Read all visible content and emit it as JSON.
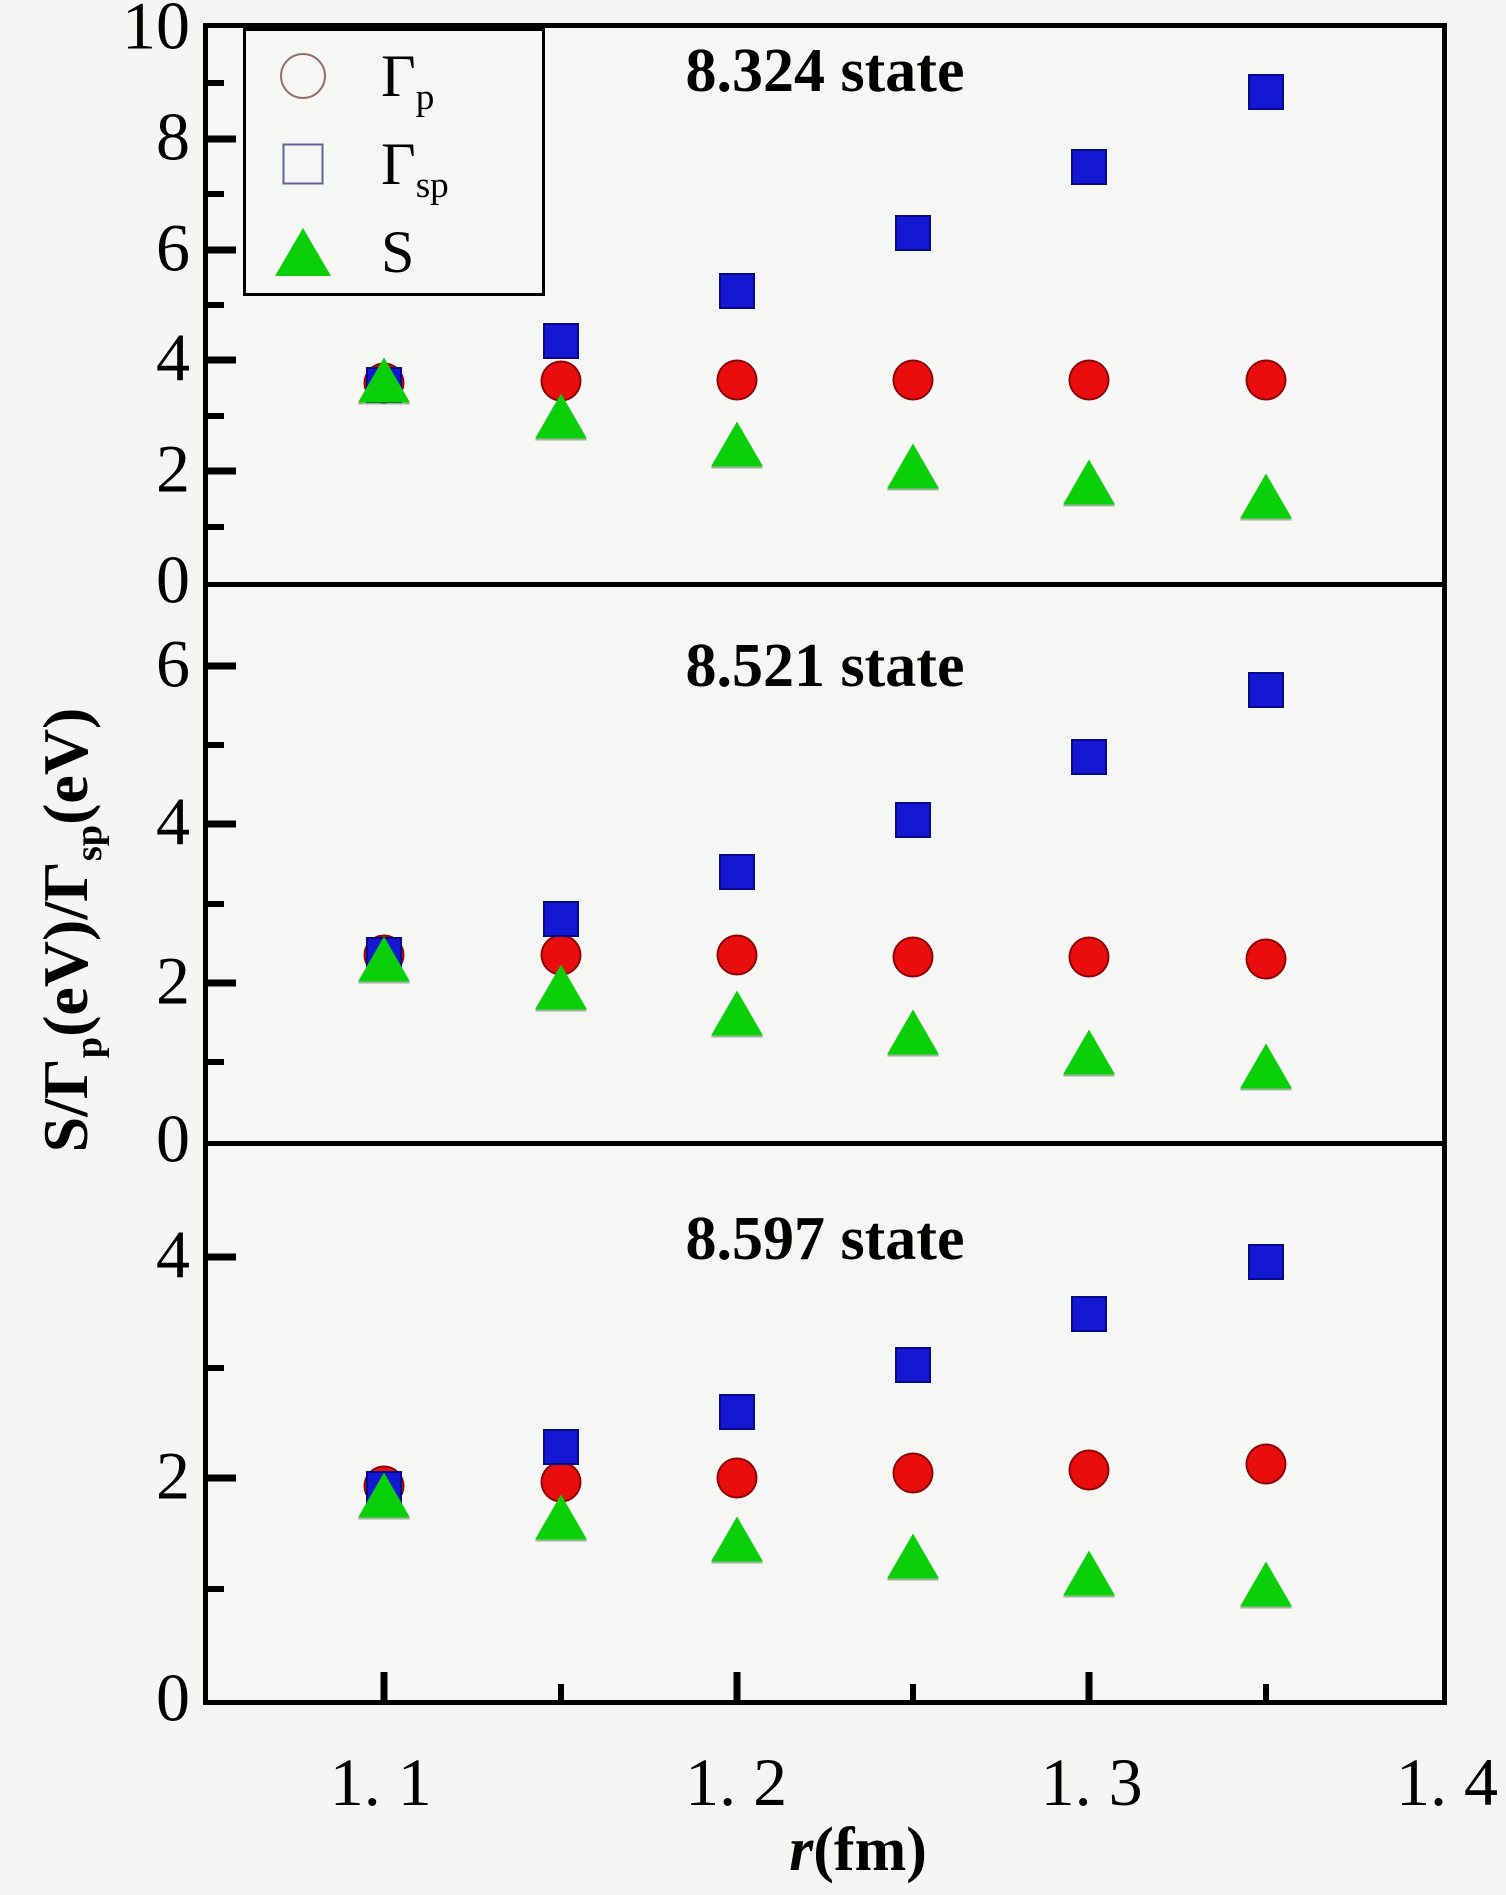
{
  "figure": {
    "background": "#f5f5f3",
    "panel_background": "#f6f6f4",
    "axis_color": "#000000"
  },
  "axes": {
    "y_title": {
      "s1": "S/",
      "g1": "Γ",
      "sub1": "p",
      "s2": "(eV)/",
      "g2": "Γ",
      "sub2": "sp",
      "s3": "(eV)"
    },
    "x_title": {
      "main": "r",
      "rest": "(fm)"
    },
    "x_tick_labels": [
      "1. 1",
      "1. 2",
      "1. 3",
      "1. 4"
    ]
  },
  "legend": {
    "items": [
      {
        "symbol": "circle-marker",
        "color": "#ea0d0d",
        "label_main": "Γ",
        "label_sub": "p"
      },
      {
        "symbol": "square-marker",
        "color": "#1518d2",
        "label_main": "Γ",
        "label_sub": "sp"
      },
      {
        "symbol": "triangle-marker",
        "color": "#0ad00a",
        "label_main": "S",
        "label_sub": ""
      }
    ]
  },
  "chart_data": {
    "type": "scatter",
    "x": [
      1.1,
      1.15,
      1.2,
      1.25,
      1.3,
      1.35
    ],
    "xlim": [
      1.05,
      1.4
    ],
    "xlabel": "r(fm)",
    "ylabel": "S/Γp(eV)/Γsp(eV)",
    "x_major_ticks": [
      1.1,
      1.2,
      1.3
    ],
    "x_minor_ticks": [
      1.15,
      1.25,
      1.35
    ],
    "grid": false,
    "legend_position": "top-left",
    "panels": [
      {
        "title": "8.324 state",
        "ylim": [
          0,
          10
        ],
        "y_major_ticks": [
          2,
          4,
          6,
          8
        ],
        "y_minor_ticks": [
          1,
          3,
          5,
          7,
          9
        ],
        "y_axis_labels": [
          {
            "v": 10,
            "t": "10"
          },
          {
            "v": 8,
            "t": "8"
          },
          {
            "v": 6,
            "t": "6"
          },
          {
            "v": 4,
            "t": "4"
          },
          {
            "v": 2,
            "t": "2"
          },
          {
            "v": 0,
            "t": "0"
          }
        ],
        "series": [
          {
            "name": "Γp",
            "marker": "circle",
            "color": "#ea0d0d",
            "values": [
              3.6,
              3.62,
              3.64,
              3.64,
              3.65,
              3.65
            ]
          },
          {
            "name": "Γsp",
            "marker": "square",
            "color": "#1518d2",
            "values": [
              3.55,
              4.35,
              5.25,
              6.3,
              7.5,
              8.85
            ]
          },
          {
            "name": "S",
            "marker": "triangle",
            "color": "#0ad00a",
            "values": [
              3.65,
              3.0,
              2.5,
              2.1,
              1.8,
              1.55
            ]
          }
        ]
      },
      {
        "title": "8.521 state",
        "ylim": [
          0,
          7
        ],
        "y_major_ticks": [
          2,
          4,
          6
        ],
        "y_minor_ticks": [
          1,
          3,
          5
        ],
        "y_axis_labels": [
          {
            "v": 6,
            "t": "6"
          },
          {
            "v": 4,
            "t": "4"
          },
          {
            "v": 2,
            "t": "2"
          },
          {
            "v": 0,
            "t": "0"
          }
        ],
        "series": [
          {
            "name": "Γp",
            "marker": "circle",
            "color": "#ea0d0d",
            "values": [
              2.35,
              2.35,
              2.35,
              2.33,
              2.32,
              2.3
            ]
          },
          {
            "name": "Γsp",
            "marker": "square",
            "color": "#1518d2",
            "values": [
              2.35,
              2.8,
              3.4,
              4.05,
              4.85,
              5.7
            ]
          },
          {
            "name": "S",
            "marker": "triangle",
            "color": "#0ad00a",
            "values": [
              2.3,
              1.95,
              1.62,
              1.38,
              1.12,
              0.95
            ]
          }
        ]
      },
      {
        "title": "8.597 state",
        "ylim": [
          0,
          5
        ],
        "y_major_ticks": [
          2,
          4
        ],
        "y_minor_ticks": [
          1,
          3
        ],
        "y_axis_labels": [
          {
            "v": 4,
            "t": "4"
          },
          {
            "v": 2,
            "t": "2"
          },
          {
            "v": 0,
            "t": "0"
          }
        ],
        "series": [
          {
            "name": "Γp",
            "marker": "circle",
            "color": "#ea0d0d",
            "values": [
              1.93,
              1.97,
              2.0,
              2.05,
              2.08,
              2.13
            ]
          },
          {
            "name": "Γsp",
            "marker": "square",
            "color": "#1518d2",
            "values": [
              1.9,
              2.28,
              2.6,
              3.02,
              3.48,
              3.95
            ]
          },
          {
            "name": "S",
            "marker": "triangle",
            "color": "#0ad00a",
            "values": [
              1.85,
              1.65,
              1.45,
              1.3,
              1.15,
              1.05
            ]
          }
        ]
      }
    ]
  }
}
